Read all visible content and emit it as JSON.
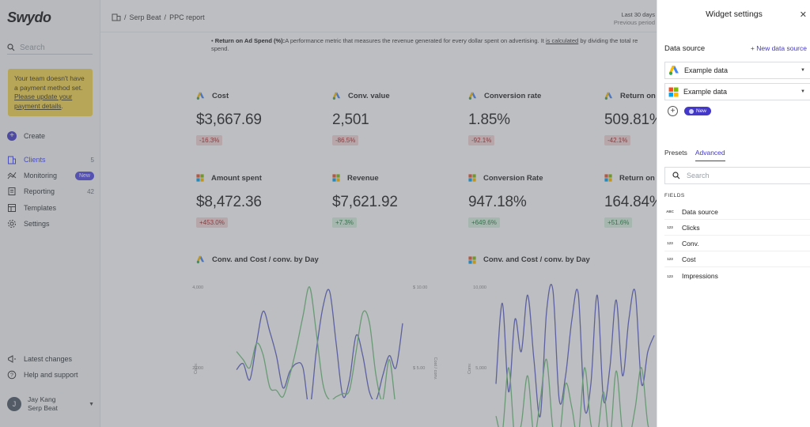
{
  "sidebar": {
    "logo": "Swydo",
    "search_placeholder": "Search",
    "alert": {
      "line1": "Your team doesn't have a payment method set.",
      "link": "Please update your payment details",
      "end": "."
    },
    "create": "Create",
    "items": [
      {
        "label": "Clients",
        "count": "5",
        "icon": "building-icon"
      },
      {
        "label": "Monitoring",
        "badge": "New",
        "icon": "trend-icon"
      },
      {
        "label": "Reporting",
        "count": "42",
        "icon": "report-icon"
      },
      {
        "label": "Templates",
        "icon": "template-icon"
      },
      {
        "label": "Settings",
        "icon": "gear-icon"
      }
    ],
    "footer": [
      {
        "label": "Latest changes",
        "icon": "megaphone-icon"
      },
      {
        "label": "Help and support",
        "icon": "help-icon"
      }
    ],
    "user": {
      "initial": "J",
      "name": "Jay Kang",
      "org": "Serp Beat"
    }
  },
  "header": {
    "crumb1": "Serp Beat",
    "crumb2": "PPC report",
    "period_main": "Last 30 days",
    "period_sub": "Previous period"
  },
  "note": {
    "term": "Return on Ad Spend (%):",
    "text1": "A performance metric that measures the revenue generated for every dollar spent on advertising. It ",
    "link": "is calculated",
    "text2": " by dividing the total re",
    "text3": "spend."
  },
  "kpis_row1": [
    {
      "label": "Cost",
      "value": "$3,667.69",
      "change": "-16.3%",
      "dir": "neg"
    },
    {
      "label": "Conv. value",
      "value": "2,501",
      "change": "-86.5%",
      "dir": "neg"
    },
    {
      "label": "Conversion rate",
      "value": "1.85%",
      "change": "-92.1%",
      "dir": "neg"
    },
    {
      "label": "Return on",
      "value": "509.81%",
      "change": "-42.1%",
      "dir": "neg"
    }
  ],
  "kpis_row2": [
    {
      "label": "Amount spent",
      "value": "$8,472.36",
      "change": "+453.0%",
      "dir": "neg"
    },
    {
      "label": "Revenue",
      "value": "$7,621.92",
      "change": "+7.3%",
      "dir": "pos"
    },
    {
      "label": "Conversion Rate",
      "value": "947.18%",
      "change": "+649.6%",
      "dir": "pos"
    },
    {
      "label": "Return on",
      "value": "164.84%",
      "change": "+51.6%",
      "dir": "pos"
    }
  ],
  "charts": [
    {
      "title": "Conv. and Cost / conv. by Day",
      "y_top": "4,000",
      "y_mid": "2,000",
      "y_left_label": "Conv.",
      "y2_top": "$ 10.00",
      "y2_mid": "$ 5.00",
      "y_right_label": "Cost / conv."
    },
    {
      "title": "Conv. and Cost / conv. by Day",
      "y_top": "10,000",
      "y_mid": "5,000",
      "y_left_label": "Conv."
    }
  ],
  "chart_data": [
    {
      "type": "line",
      "title": "Conv. and Cost / conv. by Day",
      "ylabel": "Conv.",
      "y2label": "Cost / conv.",
      "ylim": [
        0,
        4000
      ],
      "y2lim": [
        0,
        10
      ],
      "series": [
        {
          "name": "Conv.",
          "color": "#5c5fc4",
          "values": [
            1950,
            2100,
            1700,
            2600,
            3400,
            2900,
            2300,
            1500,
            1900,
            2100,
            2000,
            1000,
            2400,
            3500,
            3900,
            2600,
            1300,
            1700,
            2800,
            2300,
            1400,
            1200,
            1800,
            2300,
            2000,
            3100
          ]
        },
        {
          "name": "Cost / conv.",
          "color": "#71c27d",
          "values": [
            6.0,
            5.5,
            5.0,
            6.5,
            5.8,
            3.8,
            3.6,
            3.2,
            4.5,
            6.2,
            8.2,
            10.0,
            7.2,
            4.0,
            3.0,
            3.2,
            3.4,
            3.6,
            6.0,
            8.4,
            7.8,
            4.5,
            3.0,
            5.5,
            2.5,
            1.0
          ]
        }
      ]
    },
    {
      "type": "line",
      "title": "Conv. and Cost / conv. by Day",
      "ylabel": "Conv.",
      "ylim": [
        0,
        10000
      ],
      "series": [
        {
          "name": "Conv.",
          "color": "#5c5fc4",
          "values": [
            4000,
            9000,
            3500,
            8000,
            6000,
            9500,
            5500,
            2000,
            8500,
            9800,
            3000,
            4500,
            8000,
            9600,
            2500,
            4000,
            9500,
            3000,
            5000,
            9200,
            4500,
            8000,
            9700,
            4000,
            6000,
            7000
          ]
        },
        {
          "name": "",
          "color": "#71c27d",
          "values": [
            2000,
            1000,
            5000,
            500,
            1500,
            4500,
            800,
            3000,
            5500,
            1200,
            600,
            4000,
            2500,
            700,
            5000,
            1500,
            800,
            3500,
            600,
            4800,
            1000,
            600,
            2500,
            5000,
            1500,
            500
          ]
        }
      ]
    }
  ],
  "panel": {
    "title": "Widget settings",
    "data_source_label": "Data source",
    "new_data_source": "New data source",
    "sources": [
      "Example data",
      "Example data"
    ],
    "new_pill": "New",
    "tabs": [
      "Presets",
      "Advanced"
    ],
    "search_placeholder": "Search",
    "fields_label": "FIELDS",
    "fields": [
      {
        "type": "ABC",
        "label": "Data source"
      },
      {
        "type": "123",
        "label": "Clicks"
      },
      {
        "type": "123",
        "label": "Conv."
      },
      {
        "type": "123",
        "label": "Cost"
      },
      {
        "type": "123",
        "label": "Impressions"
      }
    ]
  },
  "colors": {
    "accent": "#4338ca",
    "conv_line": "#5c5fc4",
    "cost_line": "#71c27d",
    "alert": "#f6d54a"
  }
}
